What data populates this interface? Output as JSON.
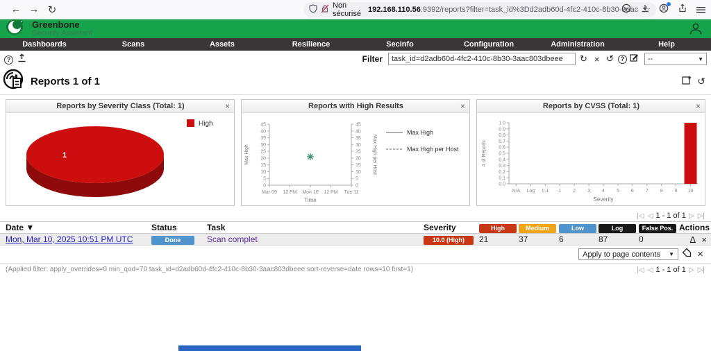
{
  "browser": {
    "security_label": "Non sécurisé",
    "url_host": "192.168.110.56",
    "url_rest": ":9392/reports?filter=task_id%3Dd2adb60d-4fc2-410c-8b30-3aac803dbeee sort-reverse%3Ddate"
  },
  "brand": {
    "name": "Greenbone",
    "subtitle": "Security Assistant"
  },
  "nav": {
    "items": [
      "Dashboards",
      "Scans",
      "Assets",
      "Resilience",
      "SecInfo",
      "Configuration",
      "Administration",
      "Help"
    ]
  },
  "toolbar": {
    "filter_label": "Filter",
    "filter_value": "task_id=d2adb60d-4fc2-410c-8b30-3aac803dbeee",
    "filter_preset": "--"
  },
  "page": {
    "title": "Reports 1 of 1"
  },
  "panels": [
    {
      "title": "Reports by Severity Class (Total: 1)",
      "chart_data": {
        "type": "pie",
        "title": "Reports by Severity Class (Total: 1)",
        "slices": [
          {
            "label": "High",
            "value": 1,
            "color": "#cc0e0e",
            "color_dark": "#8f0b0b"
          }
        ],
        "total": 1,
        "legend_position": "top-right"
      }
    },
    {
      "title": "Reports with High Results",
      "chart_data": {
        "type": "line",
        "title": "Reports with High Results",
        "x_ticks": [
          "Mar 09",
          "12 PM",
          "Mon 10",
          "12 PM",
          "Tue 11"
        ],
        "xlabel": "Time",
        "ylabel_left": "Max High",
        "ylabel_right": "Max High per Host",
        "ylim": [
          0,
          45
        ],
        "ytick_step": 5,
        "series": [
          {
            "name": "Max High",
            "style": "solid",
            "points": [
              {
                "x": 2,
                "y": 21
              }
            ]
          },
          {
            "name": "Max High per Host",
            "style": "dashed",
            "points": [
              {
                "x": 2,
                "y": 21
              }
            ]
          }
        ],
        "marker_color": "#2e8b6e"
      }
    },
    {
      "title": "Reports by CVSS (Total: 1)",
      "chart_data": {
        "type": "bar",
        "title": "Reports by CVSS (Total: 1)",
        "categories": [
          "N/A",
          "Log",
          "0.1",
          "1",
          "2",
          "3",
          "4",
          "5",
          "6",
          "7",
          "8",
          "9",
          "10"
        ],
        "values": [
          0,
          0,
          0,
          0,
          0,
          0,
          0,
          0,
          0,
          0,
          0,
          0,
          1
        ],
        "xlabel": "Severity",
        "ylabel": "# of Reports",
        "ylim": [
          0,
          1
        ],
        "ytick_step": 0.1,
        "bar_color": "#cc0e0e"
      }
    }
  ],
  "pagination": {
    "range": "1 - 1 of 1"
  },
  "table": {
    "columns": [
      {
        "label": "Date",
        "type": "text",
        "sortable": true
      },
      {
        "label": "Status",
        "type": "text"
      },
      {
        "label": "Task",
        "type": "text"
      },
      {
        "label": "Severity",
        "type": "text"
      },
      {
        "label": "High",
        "type": "badge",
        "color": "#c83814"
      },
      {
        "label": "Medium",
        "type": "badge",
        "color": "#f0a519"
      },
      {
        "label": "Low",
        "type": "badge",
        "color": "#4f94cd"
      },
      {
        "label": "Log",
        "type": "badge",
        "color": "#191919"
      },
      {
        "label": "False Pos.",
        "type": "badge",
        "color": "#191919"
      },
      {
        "label": "Actions",
        "type": "text"
      }
    ],
    "row": {
      "date": "Mon, Mar 10, 2025 10:51 PM UTC",
      "status": "Done",
      "status_color": "#4f94cd",
      "task": "Scan complet",
      "severity": "10.0 (High)",
      "severity_color": "#c83814",
      "high": "21",
      "medium": "37",
      "low": "6",
      "log": "87",
      "false_pos": "0"
    }
  },
  "apply_row": {
    "dropdown_label": "Apply to page contents"
  },
  "footer": {
    "applied_filter": "(Applied filter: apply_overrides=0 min_qod=70 task_id=d2adb60d-4fc2-410c-8b30-3aac803dbeee sort-reverse=date rows=10 first=1)"
  },
  "icons": {
    "back": "←",
    "forward": "→",
    "reload": "↻",
    "bookmark_star": "☆",
    "download_arrow": "↓",
    "help": "?",
    "refresh": "↻",
    "clear": "×",
    "reset": "↺",
    "caret": "▼",
    "sort_indicator": "▼",
    "first": "|◁",
    "prev": "◁",
    "next": "▷",
    "last": "▷|",
    "delta": "Δ",
    "delete": "×",
    "panel_close": "×"
  },
  "colors": {
    "brand_green": "#16a34c",
    "nav_bg": "#393637",
    "severity_red": "#c83814"
  }
}
